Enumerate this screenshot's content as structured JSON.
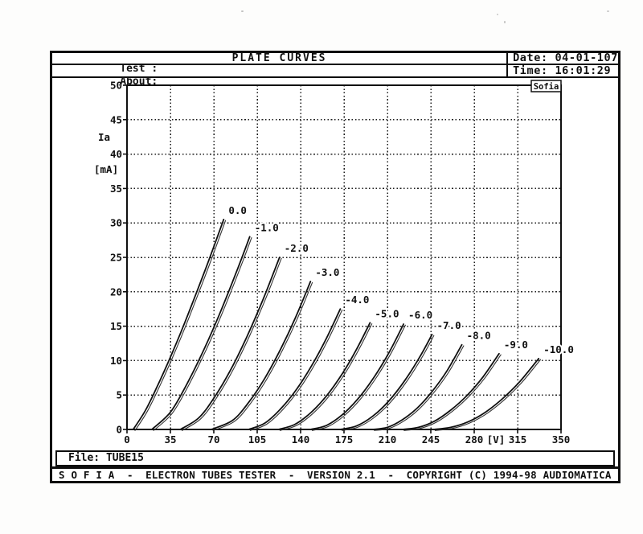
{
  "header": {
    "test_label": "Test :",
    "title": "PLATE CURVES",
    "about_label": "About:",
    "date_label": "Date:",
    "date_value": "04-01-107",
    "time_label": "Time:",
    "time_value": "16:01:29"
  },
  "file_bar": {
    "label": "File:",
    "value": "TUBE15"
  },
  "status_bar": {
    "text": "S O F I A  -  ELECTRON TUBES TESTER  -  VERSION 2.1  -  COPYRIGHT (C) 1994-98 AUDIOMATICA"
  },
  "colors": {
    "ink": "#101010",
    "paper": "#ffffff",
    "grid": "#1c1c1c"
  },
  "chart_data": {
    "type": "line",
    "title": "PLATE CURVES",
    "xlabel": "[V]",
    "ylabel_lines": [
      "Ia",
      "[mA]"
    ],
    "watermark": "Sofia",
    "xlim": [
      0,
      350
    ],
    "ylim": [
      0,
      50
    ],
    "x_ticks": [
      0,
      35,
      70,
      105,
      140,
      175,
      210,
      245,
      280,
      315,
      350
    ],
    "y_ticks": [
      0,
      5,
      10,
      15,
      20,
      25,
      30,
      35,
      40,
      45,
      50
    ],
    "grid": "dotted",
    "legend_position": "labels-on-curves",
    "double_trace": true,
    "series_meaning": "grid voltage Vg in volts; points are [plate V, Ia mA]",
    "series": [
      {
        "name": "0.0",
        "points": [
          [
            5,
            0
          ],
          [
            15,
            2.8
          ],
          [
            25,
            6.5
          ],
          [
            35,
            10.5
          ],
          [
            45,
            14.8
          ],
          [
            55,
            19.4
          ],
          [
            65,
            24.1
          ],
          [
            78,
            30.5
          ]
        ]
      },
      {
        "name": "-1.0",
        "points": [
          [
            20,
            0
          ],
          [
            35,
            2.5
          ],
          [
            48,
            6.5
          ],
          [
            61,
            11.2
          ],
          [
            74,
            16.5
          ],
          [
            87,
            22.3
          ],
          [
            99,
            28
          ]
        ]
      },
      {
        "name": "-2.0",
        "points": [
          [
            43,
            0
          ],
          [
            58,
            1.7
          ],
          [
            71,
            4.8
          ],
          [
            84,
            8.8
          ],
          [
            97,
            13.6
          ],
          [
            110,
            19
          ],
          [
            123,
            25
          ]
        ]
      },
      {
        "name": "-3.0",
        "points": [
          [
            68,
            0
          ],
          [
            85,
            1.3
          ],
          [
            98,
            3.9
          ],
          [
            111,
            7.4
          ],
          [
            124,
            11.7
          ],
          [
            136,
            16.3
          ],
          [
            148,
            21.5
          ]
        ]
      },
      {
        "name": "-4.0",
        "points": [
          [
            98,
            0
          ],
          [
            111,
            0.9
          ],
          [
            124,
            3
          ],
          [
            137,
            5.9
          ],
          [
            150,
            9.6
          ],
          [
            161,
            13.3
          ],
          [
            172,
            17.5
          ]
        ]
      },
      {
        "name": "-5.0",
        "points": [
          [
            122,
            0
          ],
          [
            135,
            0.7
          ],
          [
            148,
            2.4
          ],
          [
            161,
            4.9
          ],
          [
            174,
            8.2
          ],
          [
            185,
            11.6
          ],
          [
            196,
            15.5
          ]
        ]
      },
      {
        "name": "-6.0",
        "points": [
          [
            148,
            0
          ],
          [
            161,
            0.6
          ],
          [
            174,
            2.2
          ],
          [
            187,
            4.6
          ],
          [
            200,
            7.8
          ],
          [
            212,
            11.4
          ],
          [
            223,
            15.3
          ]
        ]
      },
      {
        "name": "-7.0",
        "points": [
          [
            172,
            0
          ],
          [
            185,
            0.5
          ],
          [
            198,
            1.9
          ],
          [
            211,
            4.1
          ],
          [
            224,
            7.1
          ],
          [
            236,
            10.5
          ],
          [
            246,
            13.8
          ]
        ]
      },
      {
        "name": "-8.0",
        "points": [
          [
            198,
            0
          ],
          [
            210,
            0.3
          ],
          [
            222,
            1.4
          ],
          [
            234,
            3.1
          ],
          [
            246,
            5.5
          ],
          [
            258,
            8.5
          ],
          [
            270,
            12.3
          ]
        ]
      },
      {
        "name": "-9.0",
        "points": [
          [
            222,
            0
          ],
          [
            235,
            0.3
          ],
          [
            248,
            1.2
          ],
          [
            261,
            2.8
          ],
          [
            274,
            4.9
          ],
          [
            287,
            7.6
          ],
          [
            300,
            11
          ]
        ]
      },
      {
        "name": "-10.0",
        "points": [
          [
            247,
            0
          ],
          [
            261,
            0.3
          ],
          [
            275,
            1.1
          ],
          [
            289,
            2.5
          ],
          [
            303,
            4.5
          ],
          [
            317,
            7
          ],
          [
            332,
            10.3
          ]
        ]
      }
    ]
  }
}
